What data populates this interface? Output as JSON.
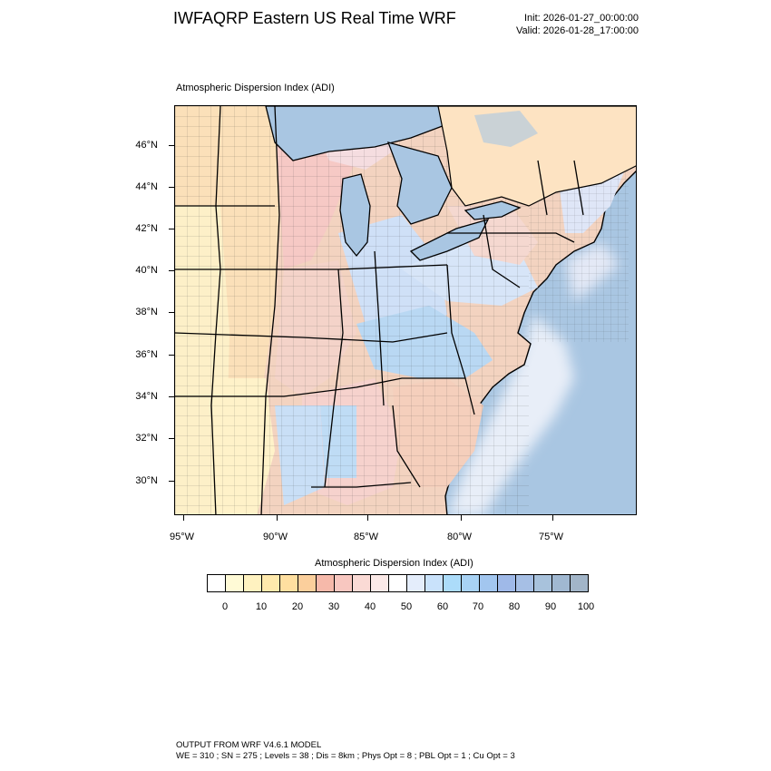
{
  "header": {
    "title": "IWFAQRP Eastern US Real Time WRF",
    "init": "Init: 2026-01-27_00:00:00",
    "valid": "Valid: 2026-01-28_17:00:00"
  },
  "plot_label": "Atmospheric Dispersion Index   (ADI)",
  "lat_labels": [
    "46°N",
    "44°N",
    "42°N",
    "40°N",
    "38°N",
    "36°N",
    "34°N",
    "32°N",
    "30°N"
  ],
  "lon_labels": [
    "95°W",
    "90°W",
    "85°W",
    "80°W",
    "75°W"
  ],
  "colorbar": {
    "title": "Atmospheric Dispersion Index  (ADI)",
    "ticks": [
      "0",
      "10",
      "20",
      "30",
      "40",
      "50",
      "60",
      "70",
      "80",
      "90",
      "100"
    ],
    "colors": [
      "#ffffff",
      "#fffad6",
      "#fff2c0",
      "#ffe9ac",
      "#ffdfa0",
      "#fbcf9c",
      "#f6b9aa",
      "#f8c7c0",
      "#fadad5",
      "#fbe9e7",
      "#ffffff",
      "#e4edfb",
      "#c9e2fb",
      "#acdcfa",
      "#a8d2f4",
      "#a2c6ef",
      "#9fb9e8",
      "#a6bfe5",
      "#a8c2dc",
      "#a0b8d1",
      "#a2b5c8"
    ]
  },
  "footer": {
    "line1": "OUTPUT FROM WRF V4.6.1 MODEL",
    "line2": "WE = 310 ; SN = 275 ; Levels = 38 ; Dis = 8km ; Phys Opt = 8 ; PBL Opt = 1 ; Cu Opt = 3"
  }
}
